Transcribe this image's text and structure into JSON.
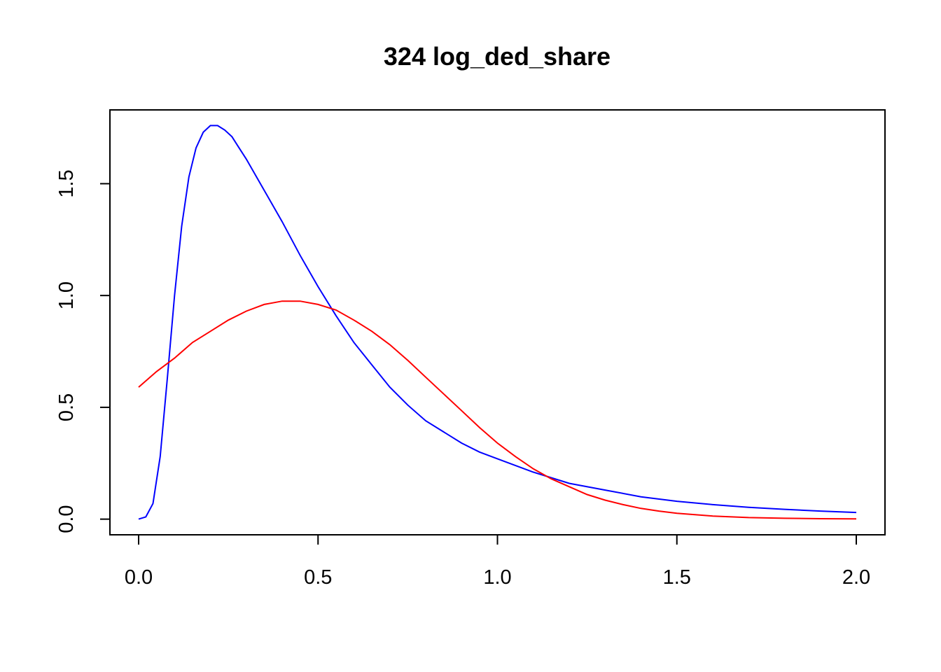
{
  "chart_data": {
    "type": "line",
    "title": "324 log_ded_share",
    "xlabel": "",
    "ylabel": "",
    "xlim": [
      -0.08,
      2.08
    ],
    "ylim": [
      -0.07,
      1.83
    ],
    "x_ticks": [
      0.0,
      0.5,
      1.0,
      1.5,
      2.0
    ],
    "x_tick_labels": [
      "0.0",
      "0.5",
      "1.0",
      "1.5",
      "2.0"
    ],
    "y_ticks": [
      0.0,
      0.5,
      1.0,
      1.5
    ],
    "y_tick_labels": [
      "0.0",
      "0.5",
      "1.0",
      "1.5"
    ],
    "grid": false,
    "series": [
      {
        "color": "#0000ff",
        "x": [
          0.0,
          0.02,
          0.04,
          0.06,
          0.08,
          0.1,
          0.12,
          0.14,
          0.16,
          0.18,
          0.2,
          0.22,
          0.24,
          0.26,
          0.28,
          0.3,
          0.35,
          0.4,
          0.45,
          0.5,
          0.55,
          0.6,
          0.65,
          0.7,
          0.75,
          0.8,
          0.85,
          0.9,
          0.95,
          1.0,
          1.1,
          1.2,
          1.3,
          1.4,
          1.5,
          1.6,
          1.7,
          1.8,
          1.9,
          2.0
        ],
        "y": [
          0.0,
          0.01,
          0.07,
          0.28,
          0.63,
          1.0,
          1.31,
          1.53,
          1.66,
          1.73,
          1.76,
          1.76,
          1.74,
          1.71,
          1.66,
          1.61,
          1.47,
          1.33,
          1.18,
          1.04,
          0.91,
          0.79,
          0.69,
          0.59,
          0.51,
          0.44,
          0.39,
          0.34,
          0.3,
          0.27,
          0.21,
          0.16,
          0.13,
          0.1,
          0.08,
          0.065,
          0.053,
          0.044,
          0.036,
          0.03
        ]
      },
      {
        "color": "#ff0000",
        "x": [
          0.0,
          0.05,
          0.1,
          0.15,
          0.2,
          0.25,
          0.3,
          0.35,
          0.4,
          0.45,
          0.5,
          0.55,
          0.6,
          0.65,
          0.7,
          0.75,
          0.8,
          0.85,
          0.9,
          0.95,
          1.0,
          1.05,
          1.1,
          1.15,
          1.2,
          1.25,
          1.3,
          1.35,
          1.4,
          1.45,
          1.5,
          1.6,
          1.7,
          1.8,
          1.9,
          2.0
        ],
        "y": [
          0.59,
          0.66,
          0.72,
          0.79,
          0.84,
          0.89,
          0.93,
          0.96,
          0.975,
          0.975,
          0.96,
          0.935,
          0.89,
          0.84,
          0.78,
          0.71,
          0.635,
          0.56,
          0.485,
          0.41,
          0.34,
          0.28,
          0.225,
          0.18,
          0.145,
          0.11,
          0.085,
          0.065,
          0.048,
          0.036,
          0.026,
          0.014,
          0.007,
          0.004,
          0.002,
          0.001
        ]
      }
    ]
  }
}
